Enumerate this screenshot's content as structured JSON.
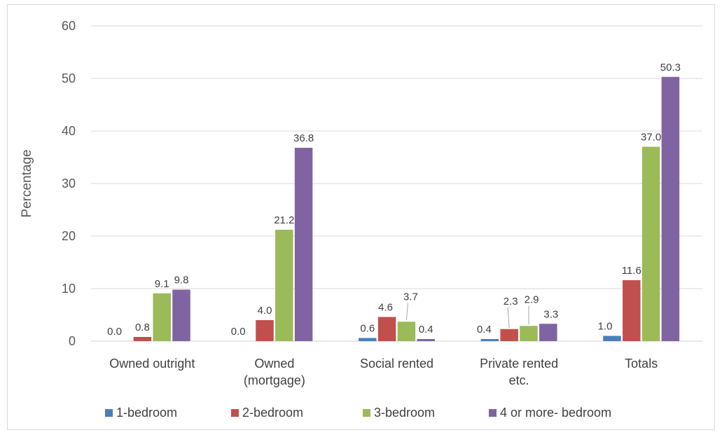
{
  "chart_data": {
    "type": "bar",
    "title": "",
    "xlabel": "",
    "ylabel": "Percentage",
    "ylim": [
      0,
      60
    ],
    "yticks": [
      0,
      10,
      20,
      30,
      40,
      50,
      60
    ],
    "grid": true,
    "legend_position": "bottom",
    "categories": [
      [
        "Owned outright"
      ],
      [
        "Owned",
        "(mortgage)"
      ],
      [
        "Social rented"
      ],
      [
        "Private rented",
        "etc."
      ],
      [
        "Totals"
      ]
    ],
    "series": [
      {
        "name": "1-bedroom",
        "color": "#4a7ebb",
        "values": [
          0.0,
          0.0,
          0.6,
          0.4,
          1.0
        ],
        "labels": [
          "0.0",
          "0.0",
          "0.6",
          "0.4",
          "1.0"
        ]
      },
      {
        "name": "2-bedroom",
        "color": "#c0504d",
        "values": [
          0.8,
          4.0,
          4.6,
          2.3,
          11.6
        ],
        "labels": [
          "0.8",
          "4.0",
          "4.6",
          "2.3",
          "11.6"
        ]
      },
      {
        "name": "3-bedroom",
        "color": "#9bbb59",
        "values": [
          9.1,
          21.2,
          3.7,
          2.9,
          37.0
        ],
        "labels": [
          "9.1",
          "21.2",
          "3.7",
          "2.9",
          "37.0"
        ]
      },
      {
        "name": "4 or more- bedroom",
        "color": "#8064a2",
        "values": [
          9.8,
          36.8,
          0.4,
          3.3,
          50.3
        ],
        "labels": [
          "9.8",
          "36.8",
          "0.4",
          "3.3",
          "50.3"
        ]
      }
    ]
  }
}
